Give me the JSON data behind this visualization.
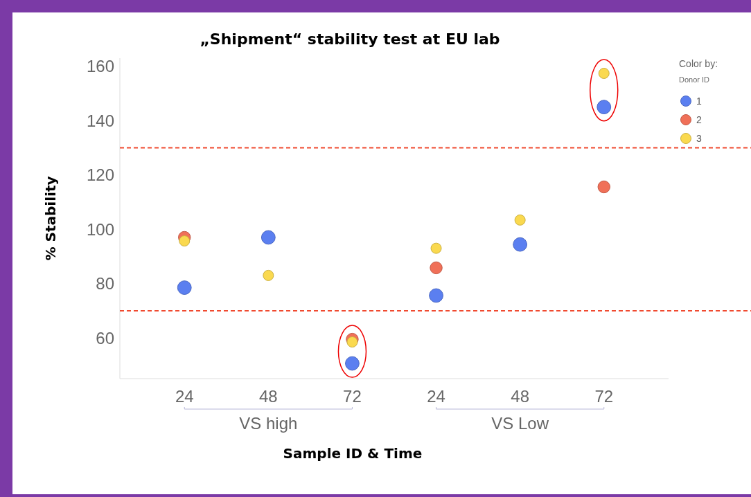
{
  "chart_data": {
    "type": "scatter",
    "title": "„Shipment“ stability test at EU lab",
    "xlabel": "Sample ID & Time",
    "ylabel": "% Stability",
    "legend_title": "Color by:",
    "categories": [
      "24",
      "48",
      "72",
      "24",
      "48",
      "72"
    ],
    "series": [
      {
        "name": "1",
        "color": "#5b7ff0",
        "values": [
          78.5,
          97,
          50.6,
          75.6,
          94.4,
          145
        ]
      },
      {
        "name": "2",
        "color": "#f07058",
        "values": [
          97,
          null,
          59.5,
          85.8,
          null,
          115.6
        ]
      },
      {
        "name": "3",
        "color": "#fad94f",
        "values": [
          95.7,
          83,
          58.5,
          93,
          103.4,
          157.4
        ]
      }
    ],
    "ylim": [
      45,
      163
    ],
    "yticks": [
      60,
      80,
      100,
      120,
      140,
      160
    ],
    "grid": false,
    "legend": "top right",
    "marker": "circle",
    "ref_lines": [
      {
        "axis": "y",
        "value": 130,
        "color": "#f04a30",
        "line_style": "dashed"
      },
      {
        "axis": "y",
        "value": 70,
        "color": "#f04a30",
        "line_style": "dashed"
      }
    ],
    "annotations": [
      "VS high",
      "VS Low",
      "Donor ID"
    ]
  }
}
